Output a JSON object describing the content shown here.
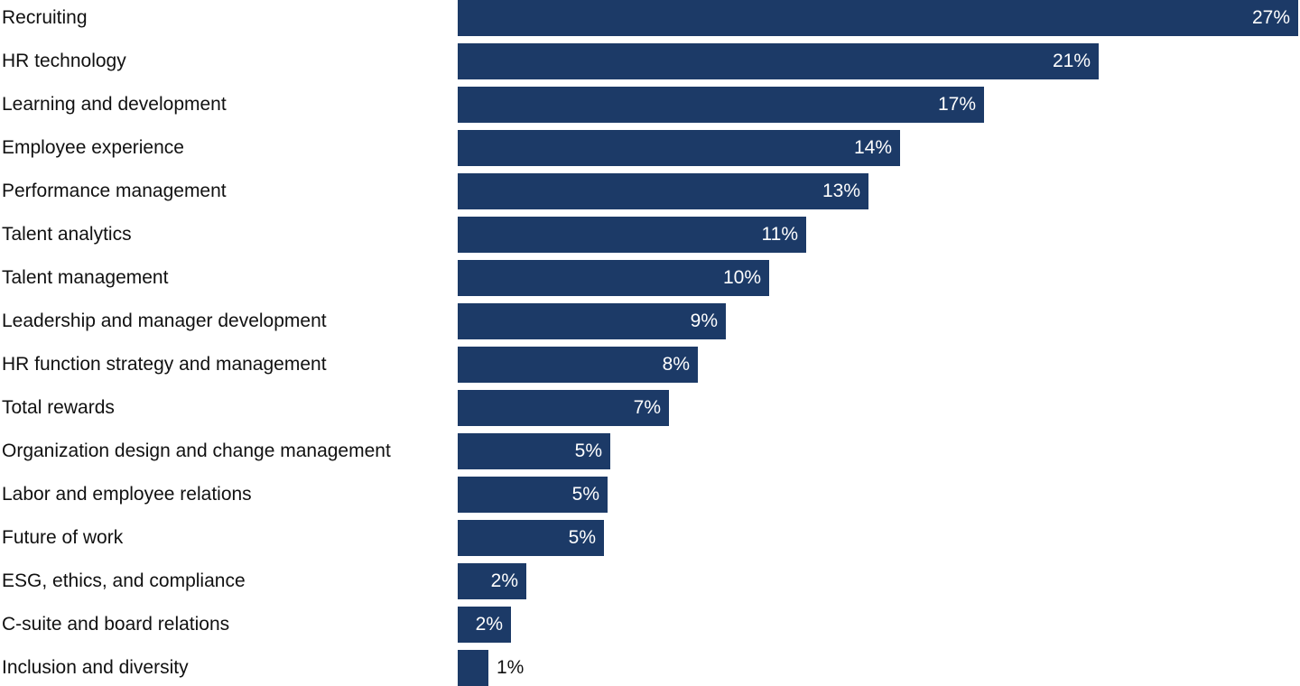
{
  "chart_data": {
    "type": "bar",
    "orientation": "horizontal",
    "title": "",
    "xlabel": "",
    "ylabel": "",
    "bar_color": "#1c3a67",
    "grid": false,
    "xlim": [
      0,
      27
    ],
    "categories": [
      "Recruiting",
      "HR technology",
      "Learning and development",
      "Employee experience",
      "Performance management",
      "Talent analytics",
      "Talent management",
      "Leadership and manager development",
      "HR function strategy and management",
      "Total rewards",
      "Organization design and change management",
      "Labor and employee relations",
      "Future of work",
      "ESG, ethics, and compliance",
      "C-suite and board relations",
      "Inclusion and diversity"
    ],
    "values": [
      27,
      20.6,
      16.9,
      14.2,
      13.2,
      11.2,
      10.0,
      8.6,
      7.7,
      6.8,
      4.9,
      4.8,
      4.7,
      2.2,
      1.7,
      1.0
    ],
    "data_labels": [
      "27%",
      "21%",
      "17%",
      "14%",
      "13%",
      "11%",
      "10%",
      "9%",
      "8%",
      "7%",
      "5%",
      "5%",
      "5%",
      "2%",
      "2%",
      "1%"
    ]
  }
}
